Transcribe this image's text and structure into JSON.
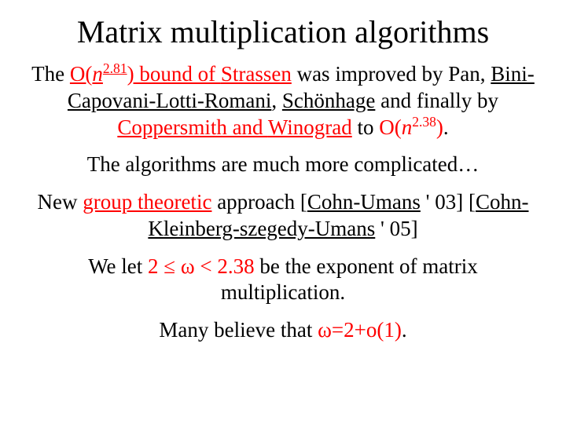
{
  "colors": {
    "text": "#000000",
    "accent": "#ff0000",
    "background": "#ffffff"
  },
  "typography": {
    "font_family": "Times New Roman",
    "title_fontsize_pt": 40,
    "body_fontsize_pt": 27
  },
  "title": "Matrix multiplication algorithms",
  "p1": {
    "a": "The ",
    "b": "O(",
    "c": "n",
    "d": "2.81",
    "e": ") bound of ",
    "f": "Strassen",
    "g": " was improved by Pan, ",
    "h": "Bini-Capovani-Lotti-Romani",
    "i": ", ",
    "j": "Schönhage",
    "k": " and finally by ",
    "l": "Coppersmith and ",
    "m": "Winograd",
    "n": " to ",
    "o": "O(",
    "p": "n",
    "q": "2.38",
    "r": ")",
    "s": "."
  },
  "p2": "The algorithms are much more complicated…",
  "p3": {
    "a": "New ",
    "b": "group theoretic",
    "c": " approach [",
    "d": "Cohn-Umans",
    "e": " ' 03] [",
    "f": "Cohn-Kleinberg-szegedy-Umans",
    "g": " ' 05]"
  },
  "p4": {
    "a": "We let ",
    "b": "2 ≤ ω < 2.38",
    "c": " be the exponent of matrix multiplication."
  },
  "p5": {
    "a": "Many believe that ",
    "b": "ω=2+o(1)",
    "c": "."
  }
}
